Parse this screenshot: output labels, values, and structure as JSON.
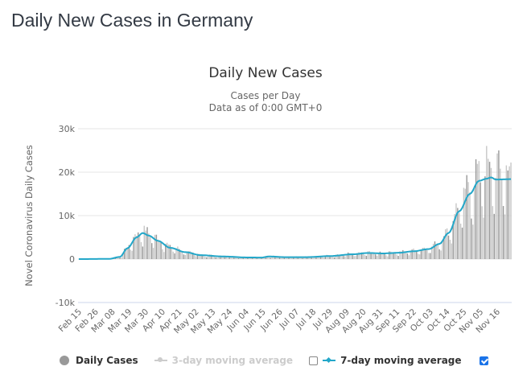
{
  "page": {
    "title": "Daily New Cases in Germany"
  },
  "chart_data": {
    "type": "bar",
    "title": "Daily New Cases",
    "subtitle_lines": [
      "Cases per Day",
      "Data as of 0:00 GMT+0"
    ],
    "ylabel": "Novel Coronavirus Daily Cases",
    "xlabel": "",
    "ylim": [
      -10000,
      30000
    ],
    "yticks": [
      {
        "value": 30000,
        "label": "30k"
      },
      {
        "value": 20000,
        "label": "20k"
      },
      {
        "value": 10000,
        "label": "10k"
      },
      {
        "value": 0,
        "label": "0"
      },
      {
        "value": -10000,
        "label": "-10k"
      }
    ],
    "grid": true,
    "start_date": "Feb 15",
    "x_tick_labels": [
      "Feb 15",
      "Feb 26",
      "Mar 08",
      "Mar 19",
      "Mar 30",
      "Apr 10",
      "Apr 21",
      "May 02",
      "May 13",
      "May 24",
      "Jun 04",
      "Jun 15",
      "Jun 26",
      "Jul 07",
      "Jul 18",
      "Jul 29",
      "Aug 09",
      "Aug 20",
      "Aug 31",
      "Sep 11",
      "Sep 22",
      "Oct 03",
      "Oct 14",
      "Oct 25",
      "Nov 05",
      "Nov 16"
    ],
    "x_tick_interval_days": 11,
    "seven_day_average_keypoints": [
      {
        "day": 0,
        "value": 0
      },
      {
        "day": 20,
        "value": 50
      },
      {
        "day": 27,
        "value": 500
      },
      {
        "day": 32,
        "value": 2500
      },
      {
        "day": 38,
        "value": 5000
      },
      {
        "day": 42,
        "value": 6000
      },
      {
        "day": 46,
        "value": 5400
      },
      {
        "day": 52,
        "value": 4200
      },
      {
        "day": 60,
        "value": 2600
      },
      {
        "day": 70,
        "value": 1600
      },
      {
        "day": 80,
        "value": 900
      },
      {
        "day": 95,
        "value": 600
      },
      {
        "day": 110,
        "value": 380
      },
      {
        "day": 120,
        "value": 350
      },
      {
        "day": 125,
        "value": 600
      },
      {
        "day": 135,
        "value": 450
      },
      {
        "day": 150,
        "value": 450
      },
      {
        "day": 165,
        "value": 700
      },
      {
        "day": 180,
        "value": 1100
      },
      {
        "day": 190,
        "value": 1400
      },
      {
        "day": 200,
        "value": 1300
      },
      {
        "day": 210,
        "value": 1450
      },
      {
        "day": 220,
        "value": 1800
      },
      {
        "day": 230,
        "value": 2300
      },
      {
        "day": 237,
        "value": 3500
      },
      {
        "day": 243,
        "value": 6000
      },
      {
        "day": 250,
        "value": 11000
      },
      {
        "day": 257,
        "value": 15000
      },
      {
        "day": 263,
        "value": 18000
      },
      {
        "day": 268,
        "value": 18500
      },
      {
        "day": 271,
        "value": 18800
      },
      {
        "day": 274,
        "value": 18300
      },
      {
        "day": 284,
        "value": 18400
      }
    ],
    "notable_daily_peaks": [
      {
        "date": "Mar 27",
        "value": 6900
      },
      {
        "date": "Nov 06",
        "value": 23400
      },
      {
        "date": "Nov 20",
        "value": 23600
      }
    ],
    "series": [
      {
        "name": "Daily Cases",
        "type": "bar",
        "color": "#999999",
        "visible": true
      },
      {
        "name": "3-day moving average",
        "type": "line",
        "color": "#cccccc",
        "visible": false
      },
      {
        "name": "7-day moving average",
        "type": "line",
        "color": "#23a7c9",
        "visible": true
      }
    ],
    "legend_position": "bottom"
  },
  "legend": {
    "daily_cases": "Daily Cases",
    "avg3": "3-day moving average",
    "avg3_checked": false,
    "avg7": "7-day moving average",
    "avg7_checked": true
  }
}
